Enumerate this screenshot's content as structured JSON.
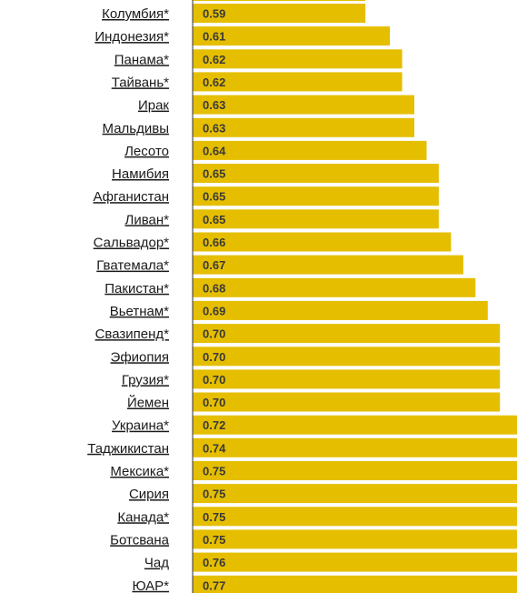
{
  "chart_data": {
    "type": "bar",
    "orientation": "horizontal",
    "title": "",
    "xlabel": "",
    "ylabel": "",
    "bar_color": "#e5be00",
    "axis_color": "#333333",
    "categories": [
      "Колумбия*",
      "Индонезия*",
      "Панама*",
      "Тайвань*",
      "Ирак",
      "Мальдивы",
      "Лесото",
      "Намибия",
      "Афганистан",
      "Ливан*",
      "Сальвадор*",
      "Гватемала*",
      "Пакистан*",
      "Вьетнам*",
      "Свазипенд*",
      "Эфиопия",
      "Грузия*",
      "Йемен",
      "Украина*",
      "Таджикистан",
      "Мексика*",
      "Сирия",
      "Канада*",
      "Ботсвана",
      "Чад",
      "ЮАР*"
    ],
    "values": [
      0.59,
      0.61,
      0.62,
      0.62,
      0.63,
      0.63,
      0.64,
      0.65,
      0.65,
      0.65,
      0.66,
      0.67,
      0.68,
      0.69,
      0.7,
      0.7,
      0.7,
      0.7,
      0.72,
      0.74,
      0.75,
      0.75,
      0.75,
      0.75,
      0.76,
      0.77
    ],
    "value_labels": [
      "0.59",
      "0.61",
      "0.62",
      "0.62",
      "0.63",
      "0.63",
      "0.64",
      "0.65",
      "0.65",
      "0.65",
      "0.66",
      "0.67",
      "0.68",
      "0.69",
      "0.70",
      "0.70",
      "0.70",
      "0.70",
      "0.72",
      "0.74",
      "0.75",
      "0.75",
      "0.75",
      "0.75",
      "0.76",
      "0.77"
    ]
  }
}
